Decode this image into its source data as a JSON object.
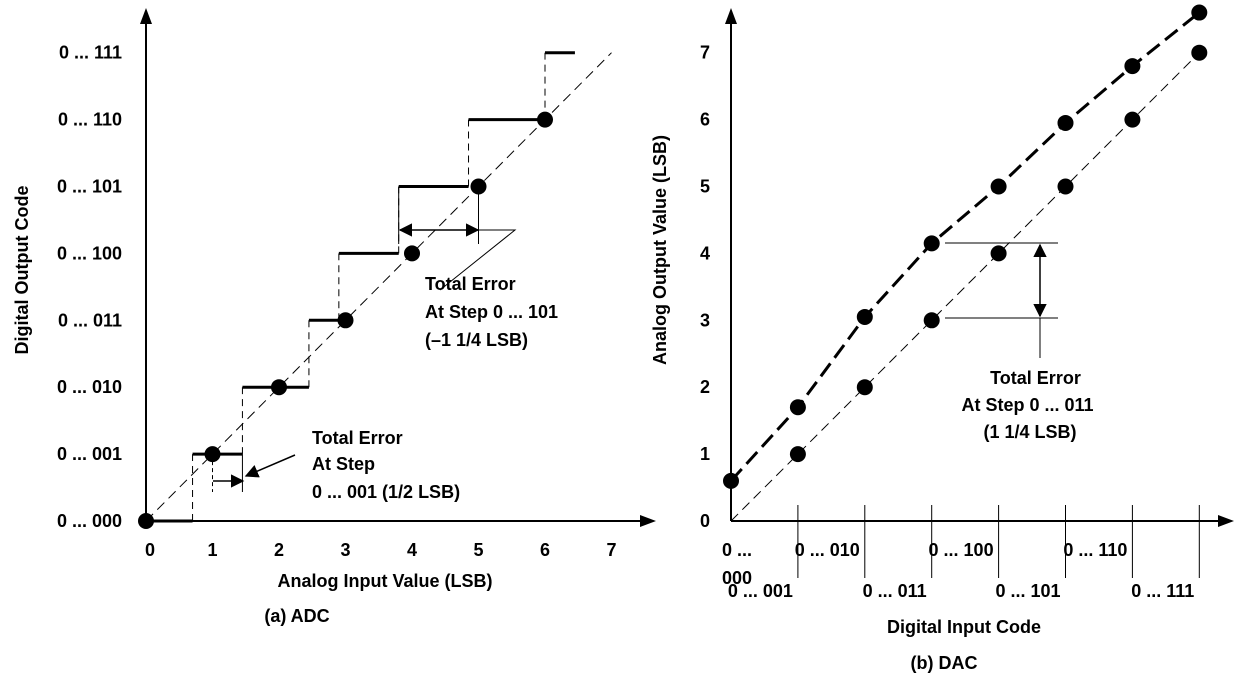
{
  "chart_data": [
    {
      "type": "line",
      "caption": "(a) ADC",
      "xlabel": "Analog Input Value (LSB)",
      "ylabel": "Digital Output Code",
      "x_ticks": [
        "0",
        "1",
        "2",
        "3",
        "4",
        "5",
        "6",
        "7"
      ],
      "y_ticks": [
        "0 ... 000",
        "0 ... 001",
        "0 ... 010",
        "0 ... 011",
        "0 ... 100",
        "0 ... 101",
        "0 ... 110",
        "0 ... 111"
      ],
      "xlim": [
        0,
        7
      ],
      "ylim": [
        0,
        7
      ],
      "series": [
        {
          "style": "bold-step",
          "steps": [
            {
              "x0": 0,
              "x1": 0.7,
              "y": 0
            },
            {
              "x0": 0.7,
              "x1": 1.45,
              "y": 1
            },
            {
              "x0": 1.45,
              "x1": 2.45,
              "y": 2
            },
            {
              "x0": 2.45,
              "x1": 2.9,
              "y": 3
            },
            {
              "x0": 2.9,
              "x1": 3.8,
              "y": 4
            },
            {
              "x0": 3.8,
              "x1": 4.85,
              "y": 5
            },
            {
              "x0": 4.85,
              "x1": 6.0,
              "y": 6
            },
            {
              "x0": 6.0,
              "x1": 6.45,
              "y": 7
            }
          ]
        },
        {
          "style": "dots",
          "points": [
            [
              0,
              0
            ],
            [
              1,
              1
            ],
            [
              2,
              2
            ],
            [
              3,
              3
            ],
            [
              4,
              4
            ],
            [
              5,
              5
            ],
            [
              6,
              6
            ]
          ]
        },
        {
          "style": "ideal-dashed",
          "points": [
            [
              0,
              0
            ],
            [
              7,
              7
            ]
          ]
        }
      ],
      "annotations": [
        {
          "lines": [
            "Total Error",
            "At Step 0 ... 101",
            "(–1 1/4 LSB)"
          ]
        },
        {
          "lines": [
            "Total Error",
            "At Step",
            "0 ... 001 (1/2 LSB)"
          ]
        }
      ]
    },
    {
      "type": "line",
      "caption": "(b) DAC",
      "xlabel": "Digital Input Code",
      "ylabel": "Analog Output Value (LSB)",
      "x_ticks": [
        "0 ... 000",
        "0 ... 001",
        "0 ... 010",
        "0 ... 011",
        "0 ... 100",
        "0 ... 101",
        "0 ... 110",
        "0 ... 111"
      ],
      "y_ticks": [
        "0",
        "1",
        "2",
        "3",
        "4",
        "5",
        "6",
        "7"
      ],
      "xlim": [
        0,
        7
      ],
      "ylim": [
        0,
        7
      ],
      "series": [
        {
          "style": "actual-dashed-bold",
          "points": [
            [
              0,
              0.6
            ],
            [
              1,
              1.7
            ],
            [
              2,
              3.05
            ],
            [
              3,
              4.15
            ],
            [
              4,
              5.0
            ],
            [
              5,
              5.95
            ],
            [
              6,
              6.8
            ],
            [
              7,
              7.6
            ]
          ]
        },
        {
          "style": "ideal-dashed",
          "points": [
            [
              0,
              0
            ],
            [
              1,
              1
            ],
            [
              2,
              2
            ],
            [
              3,
              3
            ],
            [
              4,
              4
            ],
            [
              5,
              5
            ],
            [
              6,
              6
            ],
            [
              7,
              7
            ]
          ]
        }
      ],
      "annotations": [
        {
          "lines": [
            "Total Error",
            "At Step 0 ... 011",
            "(1 1/4 LSB)"
          ]
        }
      ]
    }
  ]
}
